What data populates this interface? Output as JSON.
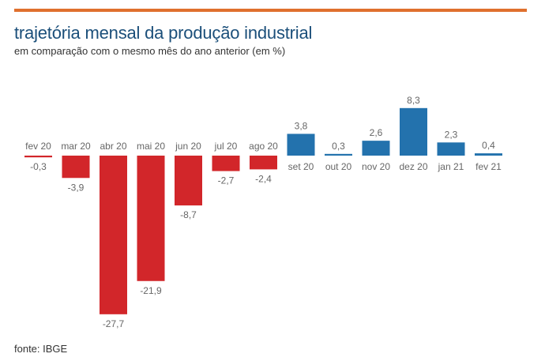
{
  "header": {
    "title": "trajetória mensal da produção industrial",
    "subtitle": "em comparação com o mesmo mês do ano anterior (em %)"
  },
  "footer": {
    "source": "fonte: IBGE"
  },
  "colors": {
    "negative": "#d2262a",
    "positive": "#2372ad",
    "accent_line": "#e0702e",
    "title": "#1b4f7a"
  },
  "chart_data": {
    "type": "bar",
    "title": "trajetória mensal da produção industrial",
    "subtitle": "em comparação com o mesmo mês do ano anterior (em %)",
    "xlabel": "",
    "ylabel": "",
    "categories": [
      "fev 20",
      "mar 20",
      "abr 20",
      "mai 20",
      "jun 20",
      "jul 20",
      "ago 20",
      "set 20",
      "out 20",
      "nov 20",
      "dez 20",
      "jan 21",
      "fev 21"
    ],
    "values": [
      -0.3,
      -3.9,
      -27.7,
      -21.9,
      -8.7,
      -2.7,
      -2.4,
      3.8,
      0.3,
      2.6,
      8.3,
      2.3,
      0.4
    ],
    "value_labels": [
      "-0,3",
      "-3,9",
      "-27,7",
      "-21,9",
      "-8,7",
      "-2,7",
      "-2,4",
      "3,8",
      "0,3",
      "2,6",
      "8,3",
      "2,3",
      "0,4"
    ],
    "ylim": [
      -27.7,
      8.3
    ],
    "grid": false,
    "legend": "none",
    "source": "fonte: IBGE"
  }
}
